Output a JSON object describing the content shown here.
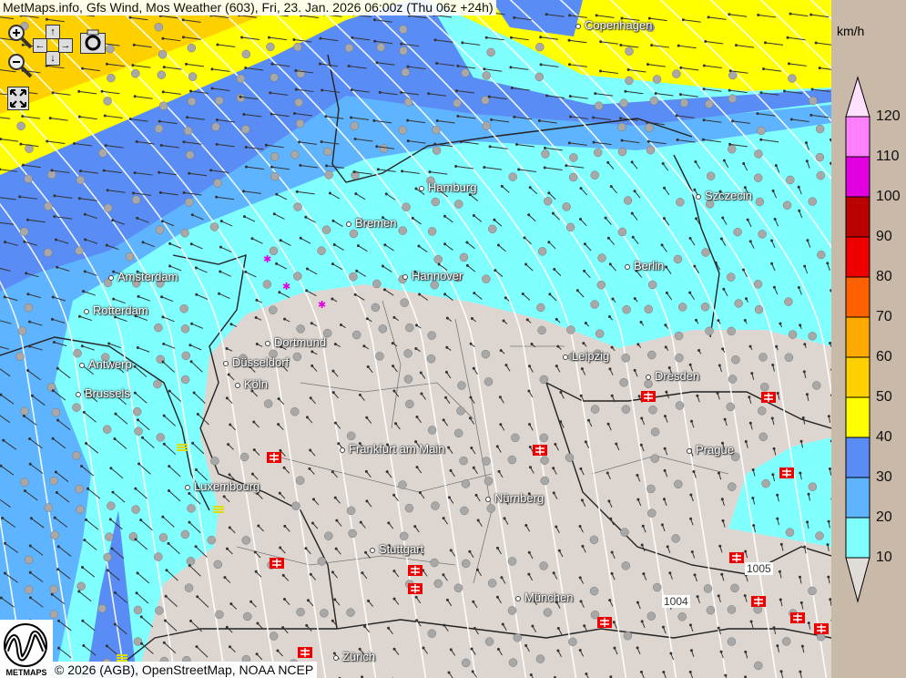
{
  "title": "MetMaps.info, Gfs Wind, Mos Weather (603), Fri, 23. Jan. 2026 06:00z (Thu 06z +24h)",
  "controls": {
    "zoom_in": "zoom-in-icon",
    "zoom_out": "zoom-out-icon",
    "pan_up": "↑",
    "pan_down": "↓",
    "pan_left": "←",
    "pan_right": "→",
    "screenshot": "camera-icon",
    "fullscreen": "fullscreen-icon"
  },
  "cities": [
    "Copenhagen",
    "Hamburg",
    "Szczecin",
    "Bremen",
    "Amsterdam",
    "Hannover",
    "Berlin",
    "Rotterdam",
    "Dortmund",
    "Leipzig",
    "Antwerp",
    "Düsseldorf",
    "Dresden",
    "Brussels",
    "Köln",
    "Frankfurt am Main",
    "Prague",
    "Luxembourg",
    "Nürnberg",
    "Stuttgart",
    "München",
    "Zürich"
  ],
  "pressure_labels": [
    "1005",
    "1004"
  ],
  "attribution": "© 2026 (AGB), OpenStreetMap, NOAA NCEP",
  "logo_text": "METMAPS",
  "legend": {
    "unit": "km/h",
    "ticks": [
      "120",
      "110",
      "100",
      "90",
      "80",
      "70",
      "60",
      "50",
      "40",
      "30",
      "20",
      "10"
    ],
    "colors": [
      "#ffe0ff",
      "#ff80ff",
      "#e000e0",
      "#bb0000",
      "#ee0000",
      "#ff6000",
      "#ffaa00",
      "#ffd000",
      "#ffff00",
      "#5a8cf5",
      "#5fb4ff",
      "#80ffff",
      "#e0dcd8"
    ]
  },
  "map_colors": {
    "below_10": "#ddd6d0",
    "10_20": "#80ffff",
    "20_30": "#5fb4ff",
    "30_40": "#5a8cf5",
    "40_50": "#ffff00",
    "50_60": "#ffd000"
  }
}
